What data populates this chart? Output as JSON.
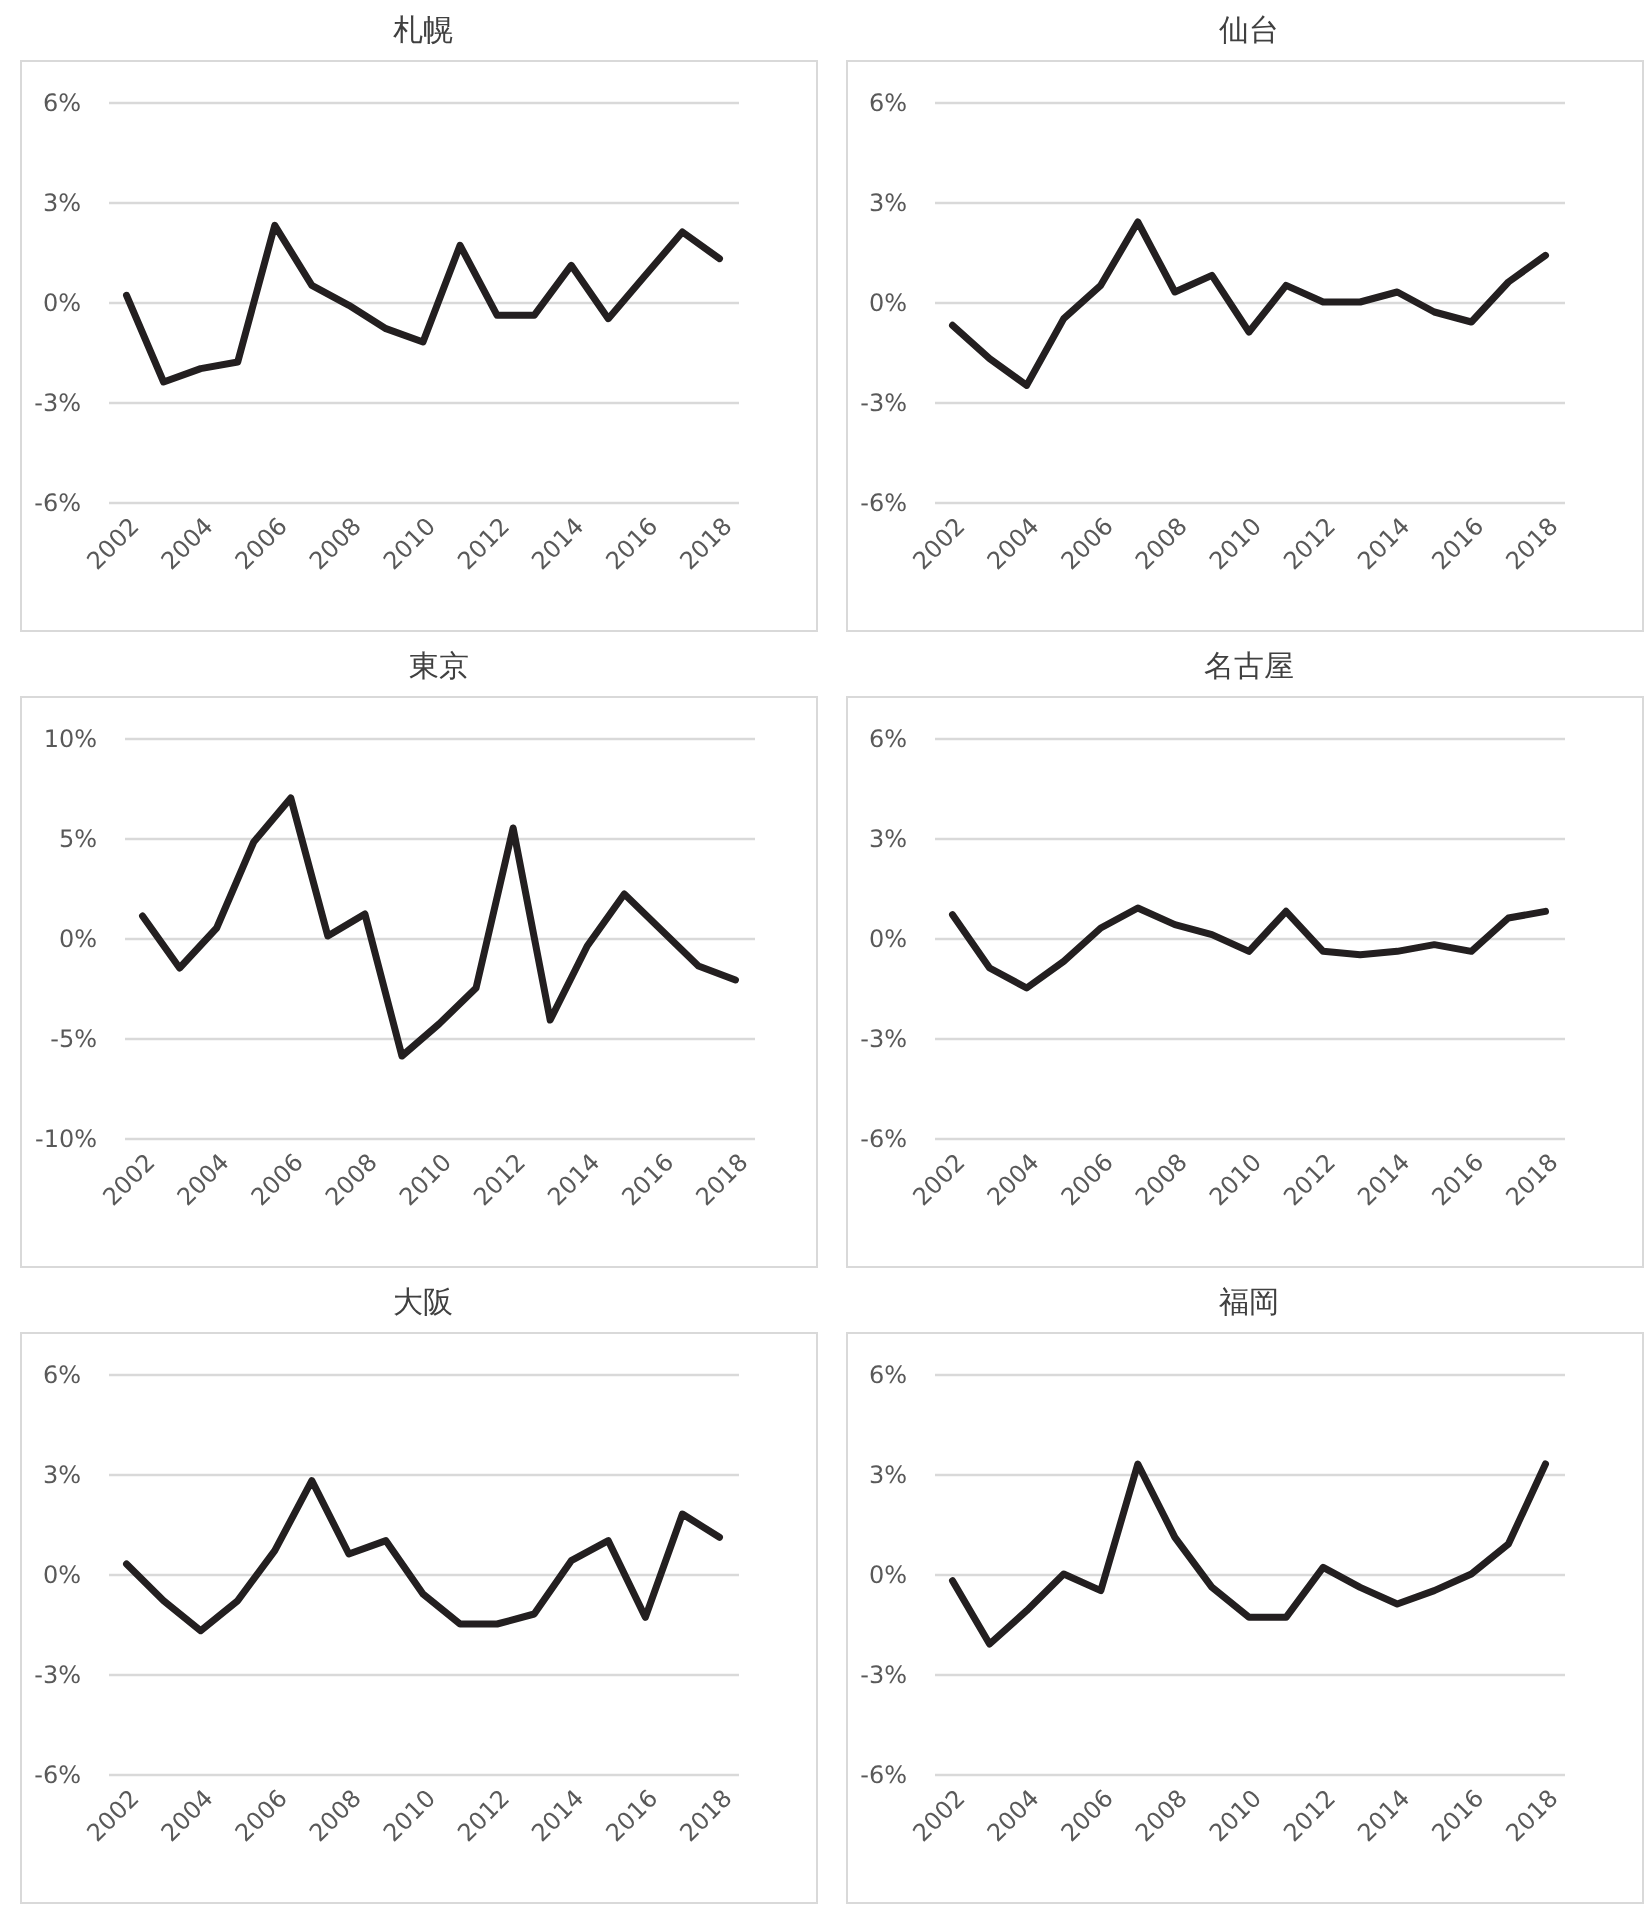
{
  "chart_data": [
    {
      "type": "line",
      "title": "札幌",
      "categories": [
        "2002",
        null,
        "2004",
        null,
        "2006",
        null,
        "2008",
        null,
        "2010",
        null,
        "2012",
        null,
        "2014",
        null,
        "2016",
        null,
        "2018"
      ],
      "series": [
        {
          "color": "#231f20",
          "values": [
            0.2,
            -2.4,
            -2.0,
            -1.8,
            2.3,
            0.5,
            -0.1,
            -0.8,
            -1.2,
            1.7,
            -0.4,
            -0.4,
            1.1,
            -0.5,
            0.8,
            2.1,
            1.3
          ]
        }
      ],
      "ylim": [
        -6,
        6
      ],
      "yticks": [
        {
          "value": -6,
          "label": "-6%"
        },
        {
          "value": -3,
          "label": "-3%"
        },
        {
          "value": 0,
          "label": "0%"
        },
        {
          "value": 3,
          "label": "3%"
        },
        {
          "value": 6,
          "label": "6%"
        }
      ],
      "grid": "y"
    },
    {
      "type": "line",
      "title": "仙台",
      "categories": [
        "2002",
        null,
        "2004",
        null,
        "2006",
        null,
        "2008",
        null,
        "2010",
        null,
        "2012",
        null,
        "2014",
        null,
        "2016",
        null,
        "2018"
      ],
      "series": [
        {
          "color": "#231f20",
          "values": [
            -0.7,
            -1.7,
            -2.5,
            -0.5,
            0.5,
            2.4,
            0.3,
            0.8,
            -0.9,
            0.5,
            0.0,
            0.0,
            0.3,
            -0.3,
            -0.6,
            0.6,
            1.4
          ]
        }
      ],
      "ylim": [
        -6,
        6
      ],
      "yticks": [
        {
          "value": -6,
          "label": "-6%"
        },
        {
          "value": -3,
          "label": "-3%"
        },
        {
          "value": 0,
          "label": "0%"
        },
        {
          "value": 3,
          "label": "3%"
        },
        {
          "value": 6,
          "label": "6%"
        }
      ],
      "grid": "y"
    },
    {
      "type": "line",
      "title": "東京",
      "categories": [
        "2002",
        null,
        "2004",
        null,
        "2006",
        null,
        "2008",
        null,
        "2010",
        null,
        "2012",
        null,
        "2014",
        null,
        "2016",
        null,
        "2018"
      ],
      "series": [
        {
          "color": "#231f20",
          "values": [
            1.1,
            -1.5,
            0.5,
            4.8,
            7.0,
            0.1,
            1.2,
            -5.9,
            -4.3,
            -2.5,
            5.5,
            -4.1,
            -0.4,
            2.2,
            0.4,
            -1.4,
            -2.1
          ]
        }
      ],
      "ylim": [
        -10,
        10
      ],
      "yticks": [
        {
          "value": -10,
          "label": "-10%"
        },
        {
          "value": -5,
          "label": "-5%"
        },
        {
          "value": 0,
          "label": "0%"
        },
        {
          "value": 5,
          "label": "5%"
        },
        {
          "value": 10,
          "label": "10%"
        }
      ],
      "grid": "y"
    },
    {
      "type": "line",
      "title": "名古屋",
      "categories": [
        "2002",
        null,
        "2004",
        null,
        "2006",
        null,
        "2008",
        null,
        "2010",
        null,
        "2012",
        null,
        "2014",
        null,
        "2016",
        null,
        "2018"
      ],
      "series": [
        {
          "color": "#231f20",
          "values": [
            0.7,
            -0.9,
            -1.5,
            -0.7,
            0.3,
            0.9,
            0.4,
            0.1,
            -0.4,
            0.8,
            -0.4,
            -0.5,
            -0.4,
            -0.2,
            -0.4,
            0.6,
            0.8
          ]
        }
      ],
      "ylim": [
        -6,
        6
      ],
      "yticks": [
        {
          "value": -6,
          "label": "-6%"
        },
        {
          "value": -3,
          "label": "-3%"
        },
        {
          "value": 0,
          "label": "0%"
        },
        {
          "value": 3,
          "label": "3%"
        },
        {
          "value": 6,
          "label": "6%"
        }
      ],
      "grid": "y"
    },
    {
      "type": "line",
      "title": "大阪",
      "categories": [
        "2002",
        null,
        "2004",
        null,
        "2006",
        null,
        "2008",
        null,
        "2010",
        null,
        "2012",
        null,
        "2014",
        null,
        "2016",
        null,
        "2018"
      ],
      "series": [
        {
          "color": "#231f20",
          "values": [
            0.3,
            -0.8,
            -1.7,
            -0.8,
            0.7,
            2.8,
            0.6,
            1.0,
            -0.6,
            -1.5,
            -1.5,
            -1.2,
            0.4,
            1.0,
            -1.3,
            1.8,
            1.1
          ]
        }
      ],
      "ylim": [
        -6,
        6
      ],
      "yticks": [
        {
          "value": -6,
          "label": "-6%"
        },
        {
          "value": -3,
          "label": "-3%"
        },
        {
          "value": 0,
          "label": "0%"
        },
        {
          "value": 3,
          "label": "3%"
        },
        {
          "value": 6,
          "label": "6%"
        }
      ],
      "grid": "y"
    },
    {
      "type": "line",
      "title": "福岡",
      "categories": [
        "2002",
        null,
        "2004",
        null,
        "2006",
        null,
        "2008",
        null,
        "2010",
        null,
        "2012",
        null,
        "2014",
        null,
        "2016",
        null,
        "2018"
      ],
      "series": [
        {
          "color": "#231f20",
          "values": [
            -0.2,
            -2.1,
            -1.1,
            0.0,
            -0.5,
            3.3,
            1.1,
            -0.4,
            -1.3,
            -1.3,
            0.2,
            -0.4,
            -0.9,
            -0.5,
            0.0,
            0.9,
            3.3
          ]
        }
      ],
      "ylim": [
        -6,
        6
      ],
      "yticks": [
        {
          "value": -6,
          "label": "-6%"
        },
        {
          "value": -3,
          "label": "-3%"
        },
        {
          "value": 0,
          "label": "0%"
        },
        {
          "value": 3,
          "label": "3%"
        },
        {
          "value": 6,
          "label": "6%"
        }
      ],
      "grid": "y"
    }
  ]
}
